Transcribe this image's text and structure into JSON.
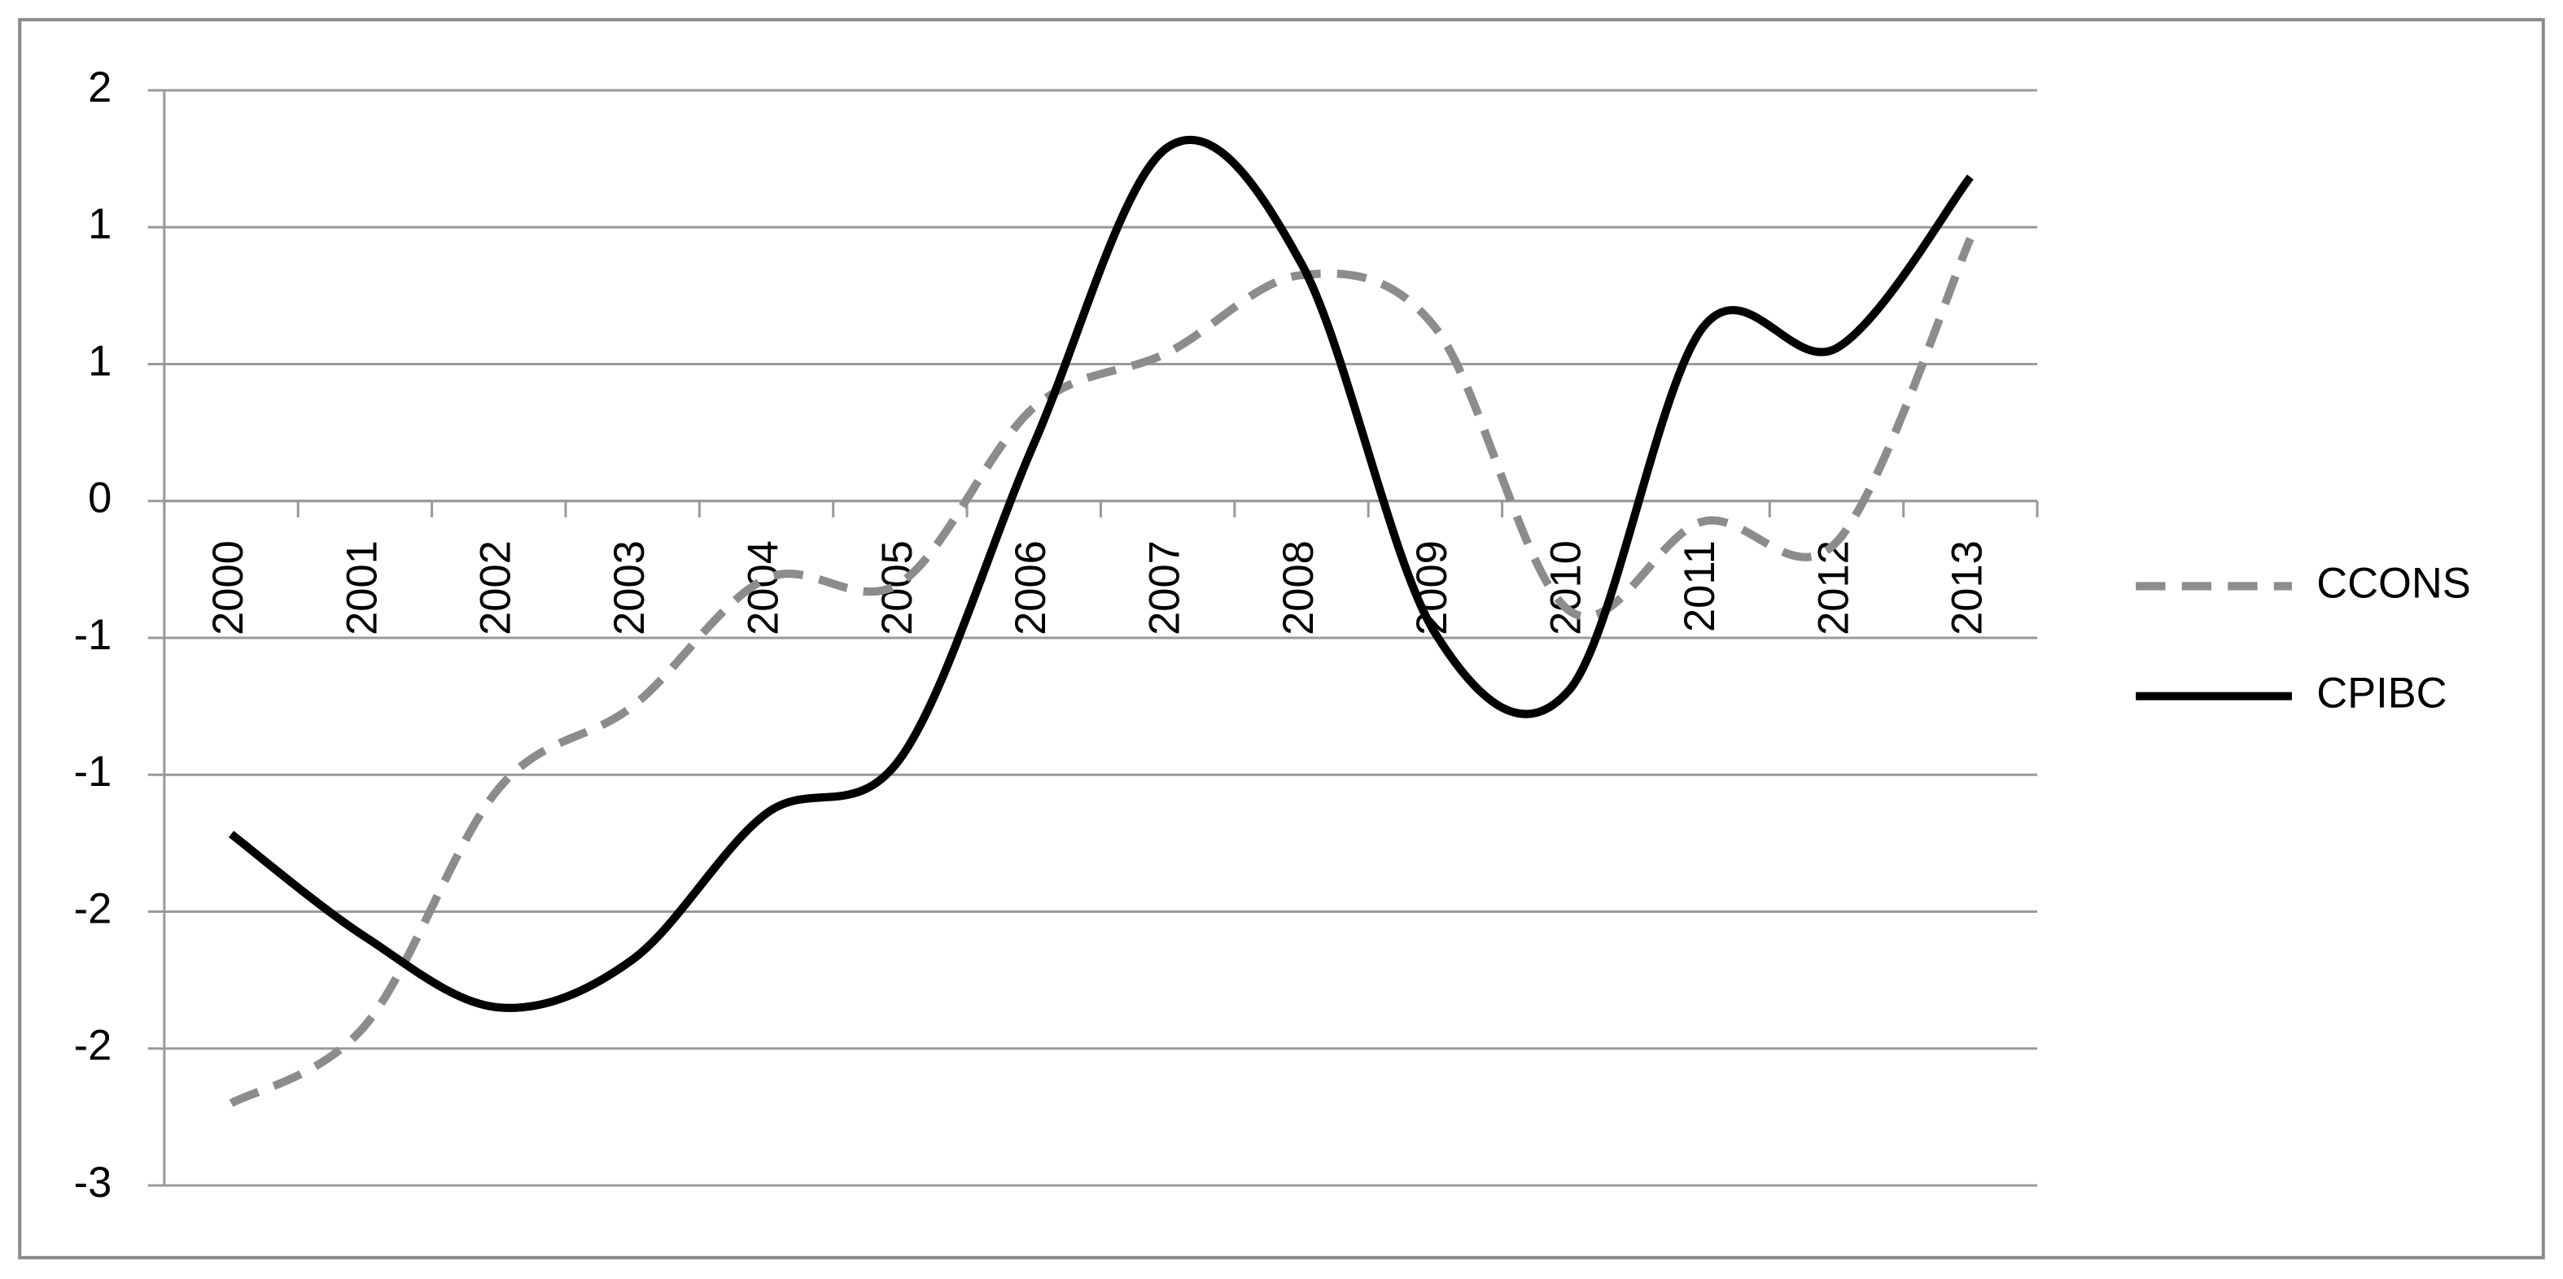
{
  "chart_data": {
    "type": "line",
    "categories": [
      "2000",
      "2001",
      "2002",
      "2003",
      "2004",
      "2005",
      "2006",
      "2007",
      "2008",
      "2009",
      "2010",
      "2011",
      "2012",
      "2013"
    ],
    "series": [
      {
        "name": "CCONS",
        "color": "#8c8c8c",
        "linestyle": "dashed",
        "values": [
          -2.64,
          -2.3,
          -1.26,
          -0.9,
          -0.34,
          -0.36,
          0.41,
          0.65,
          0.99,
          0.76,
          -0.48,
          -0.09,
          -0.18,
          1.15
        ]
      },
      {
        "name": "CPIBC",
        "color": "#000000",
        "linestyle": "solid",
        "values": [
          -1.46,
          -1.91,
          -2.22,
          -2.01,
          -1.37,
          -1.13,
          0.25,
          1.55,
          1.04,
          -0.58,
          -0.83,
          0.76,
          0.67,
          1.42
        ]
      }
    ],
    "ylim": [
      -3,
      1.8
    ],
    "yticks": [
      {
        "value": -3,
        "label": "-3"
      },
      {
        "value": -2.4,
        "label": "-2"
      },
      {
        "value": -1.8,
        "label": "-2"
      },
      {
        "value": -1.2,
        "label": "-1"
      },
      {
        "value": -0.6,
        "label": "-1"
      },
      0,
      {
        "value": 0.6,
        "label": "1"
      },
      {
        "value": 1.2,
        "label": "1"
      },
      {
        "value": 1.8,
        "label": "2"
      }
    ],
    "grid": true,
    "legend": "right"
  }
}
